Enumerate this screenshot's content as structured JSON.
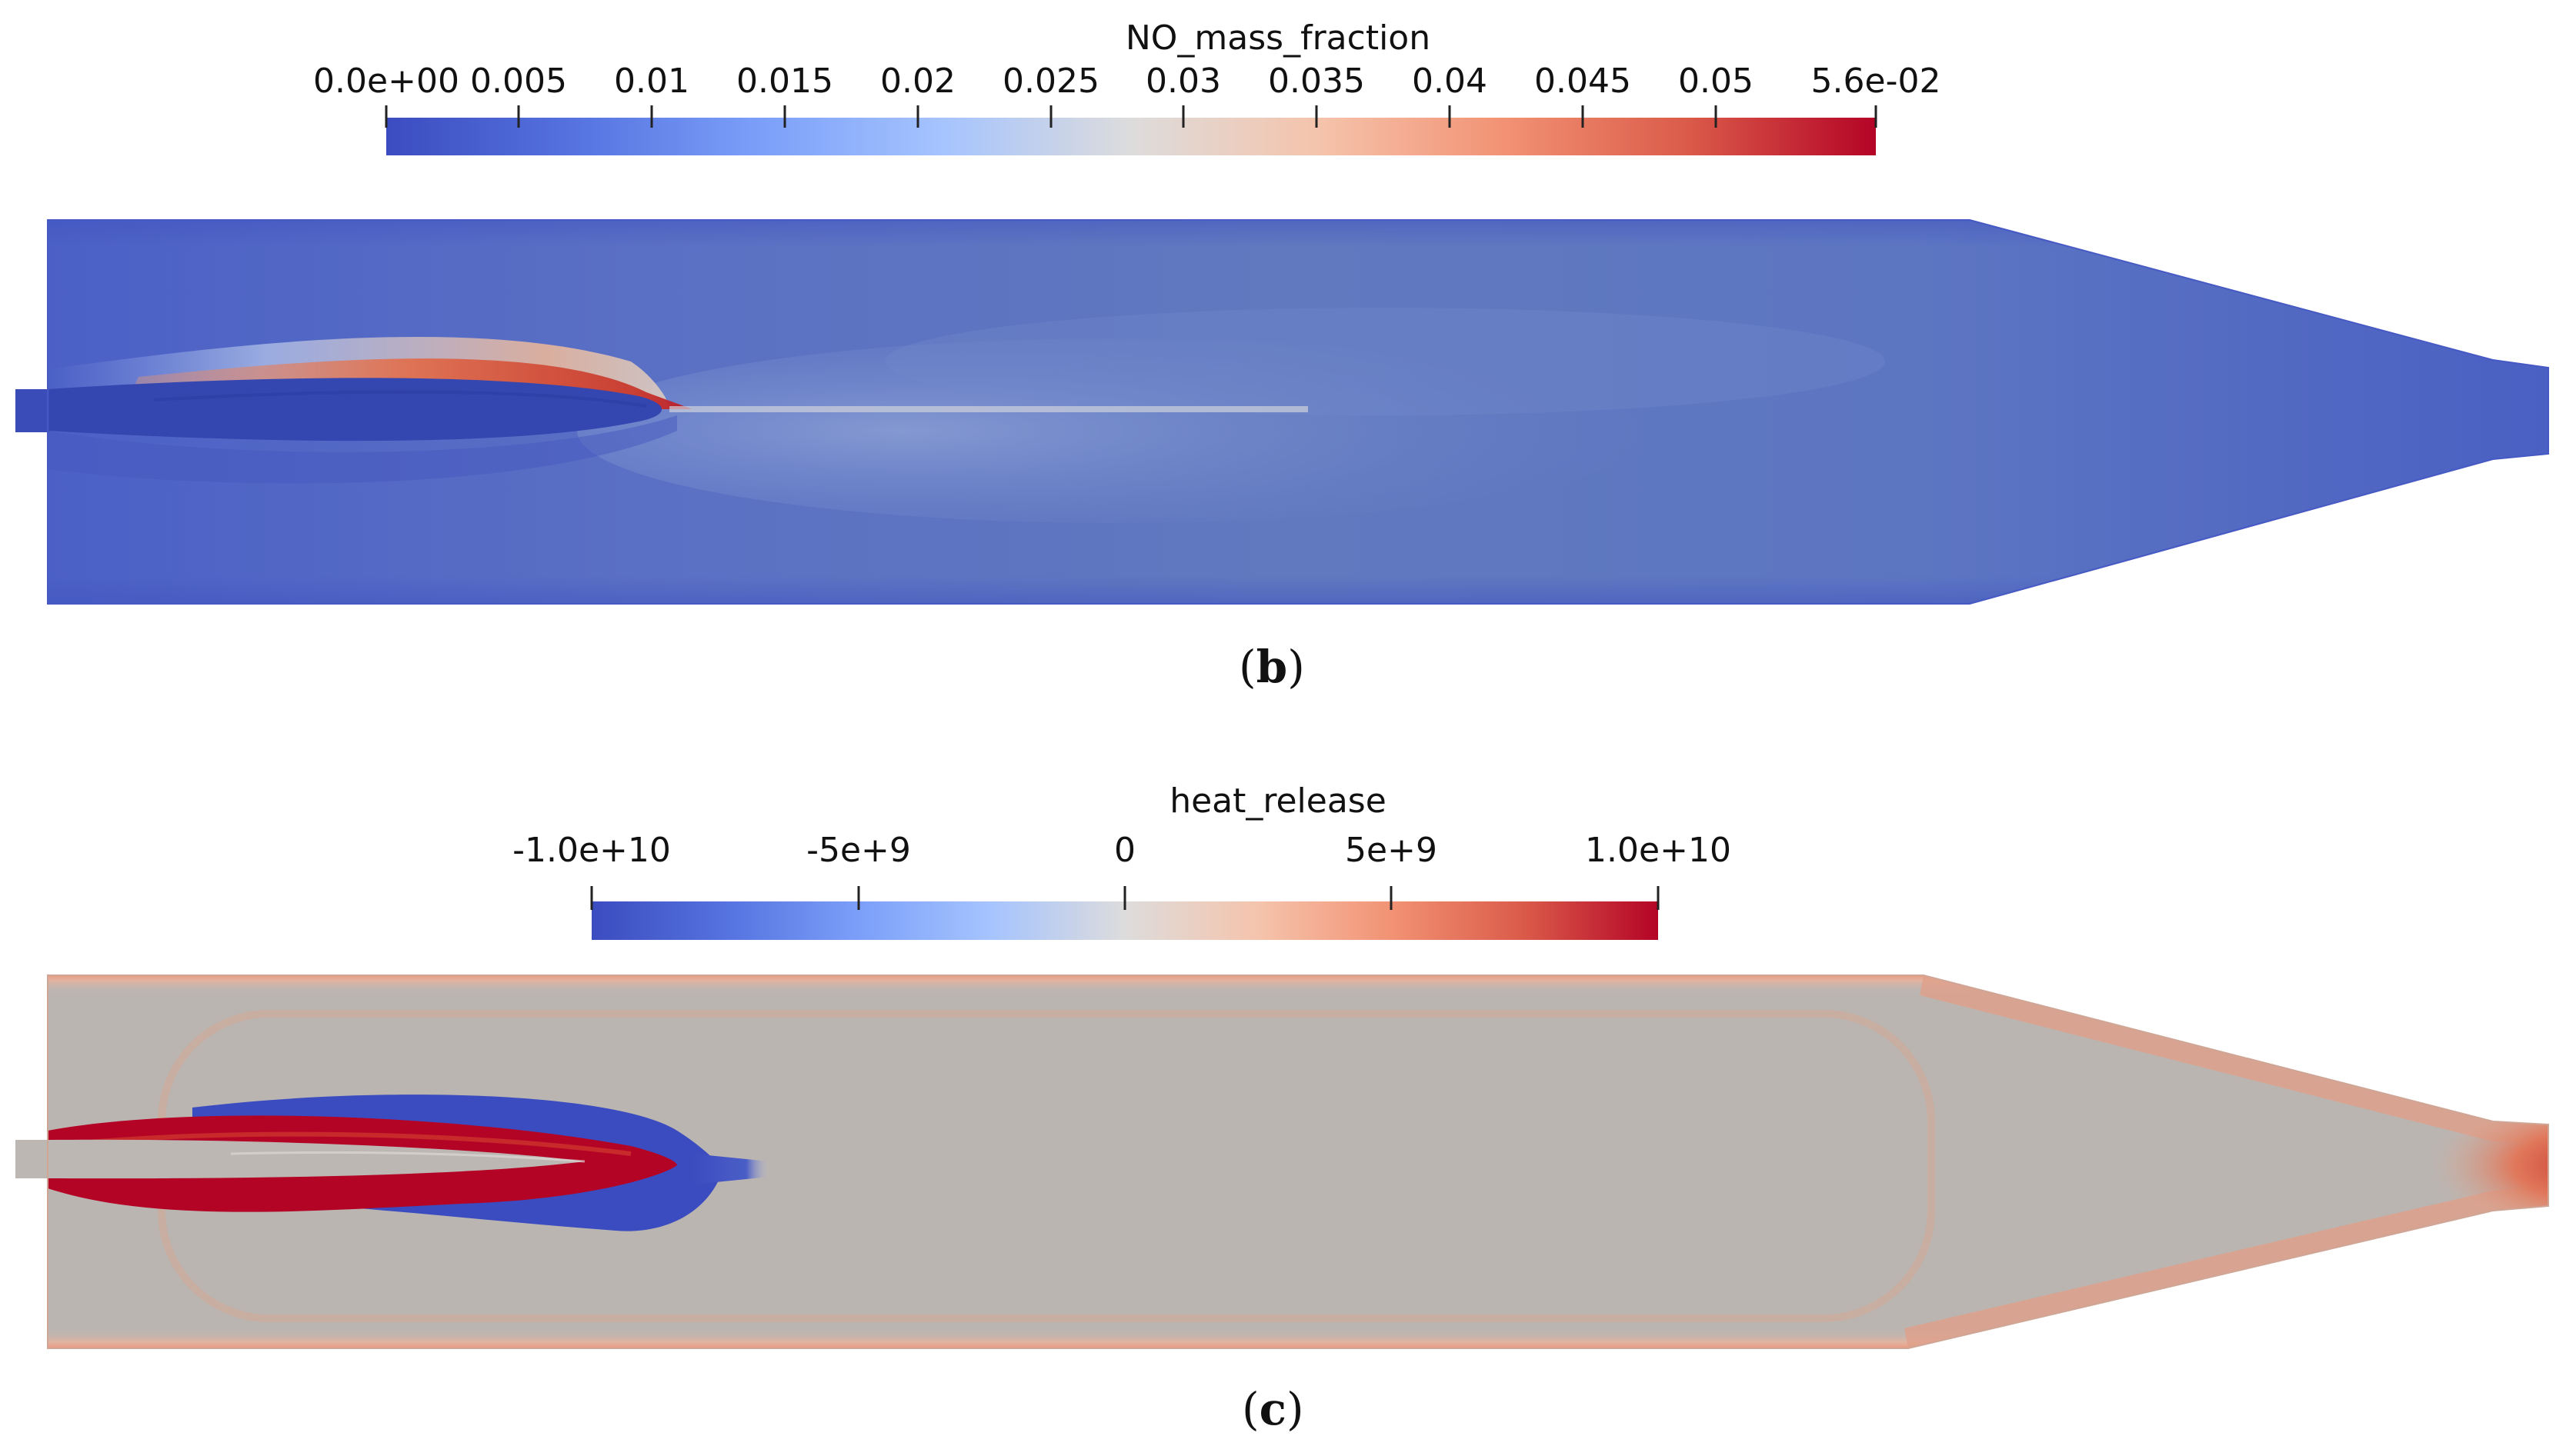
{
  "panels": [
    {
      "id": "b",
      "label_letter": "b",
      "colorbar_title": "NO_mass_fraction",
      "tick_labels": [
        "0.0e+00",
        "0.005",
        "0.01",
        "0.015",
        "0.02",
        "0.025",
        "0.03",
        "0.035",
        "0.04",
        "0.045",
        "0.05",
        "5.6e-02"
      ],
      "range": [
        0,
        0.056
      ],
      "colormap_low": "#3b4cc0",
      "colormap_mid": "#dddcdc",
      "colormap_high": "#b40426"
    },
    {
      "id": "c",
      "label_letter": "c",
      "colorbar_title": "heat_release",
      "tick_labels": [
        "-1.0e+10",
        "-5e+9",
        "0",
        "5e+9",
        "1.0e+10"
      ],
      "range": [
        -10000000000,
        10000000000
      ],
      "colormap_low": "#3b4cc0",
      "colormap_mid": "#dddcdc",
      "colormap_high": "#b40426"
    }
  ],
  "label_parens": {
    "open": "(",
    "close": ")"
  }
}
